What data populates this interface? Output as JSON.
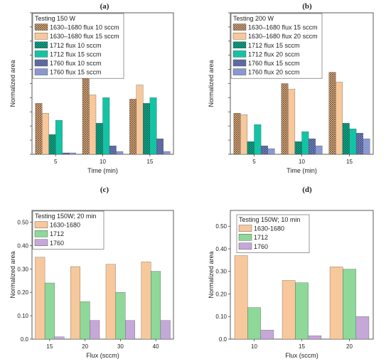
{
  "colors": {
    "c1630": "#f7c89b",
    "c1712": "#12c4a4",
    "c1760": "#8a98d0",
    "g1712": "#8ed89a",
    "g1760": "#c5a8d8",
    "hatch_brown": "#6b4a2e",
    "hatch_teal": "#0c5f4c",
    "hatch_blue": "#38457c"
  },
  "chart_data": [
    {
      "panel": "(a)",
      "type": "bar",
      "legend_title": "Testing 150 W",
      "xlabel": "Time (min)",
      "ylabel": "Normalized area",
      "categories": [
        "5",
        "10",
        "15"
      ],
      "ylim": [
        0,
        1.0
      ],
      "y_ticks_labeled": false,
      "series": [
        {
          "name": "1630–1680 flux 10 sccm",
          "style": "hatch",
          "color": "c1630",
          "values": [
            0.36,
            0.6,
            0.39
          ]
        },
        {
          "name": "1630–1680 flux 15 sccm",
          "style": "solid",
          "color": "c1630",
          "values": [
            0.29,
            0.42,
            0.49
          ]
        },
        {
          "name": "1712 flux 10 sccm",
          "style": "hatch",
          "color": "c1712",
          "values": [
            0.14,
            0.22,
            0.36
          ]
        },
        {
          "name": "1712 flux 15 sccm",
          "style": "solid",
          "color": "c1712",
          "values": [
            0.24,
            0.4,
            0.4
          ]
        },
        {
          "name": "1760 flux 10 sccm",
          "style": "hatch",
          "color": "c1760",
          "values": [
            0.01,
            0.06,
            0.11
          ]
        },
        {
          "name": "1760 flux 15 sccm",
          "style": "solid",
          "color": "c1760",
          "values": [
            0.01,
            0.02,
            0.02
          ]
        }
      ]
    },
    {
      "panel": "(b)",
      "type": "bar",
      "legend_title": "Testing 200 W",
      "xlabel": "Time (min)",
      "ylabel": "Normalized area",
      "categories": [
        "5",
        "10",
        "15"
      ],
      "ylim": [
        0,
        1.0
      ],
      "y_ticks_labeled": false,
      "series": [
        {
          "name": "1630–1680 flux 15 sccm",
          "style": "hatch",
          "color": "c1630",
          "values": [
            0.29,
            0.5,
            0.58
          ]
        },
        {
          "name": "1630–1680 flux 20 sccm",
          "style": "solid",
          "color": "c1630",
          "values": [
            0.28,
            0.46,
            0.51
          ]
        },
        {
          "name": "1712 flux 15 sccm",
          "style": "hatch",
          "color": "c1712",
          "values": [
            0.09,
            0.09,
            0.22
          ]
        },
        {
          "name": "1712 flux 20 sccm",
          "style": "solid",
          "color": "c1712",
          "values": [
            0.21,
            0.16,
            0.18
          ]
        },
        {
          "name": "1760 flux 15 sccm",
          "style": "hatch",
          "color": "c1760",
          "values": [
            0.06,
            0.11,
            0.15
          ]
        },
        {
          "name": "1760 flux 20 sccm",
          "style": "solid",
          "color": "c1760",
          "values": [
            0.04,
            0.06,
            0.11
          ]
        }
      ]
    },
    {
      "panel": "(c)",
      "type": "bar",
      "legend_title": "Testing 150W; 20 min",
      "xlabel": "Flux (sccm)",
      "ylabel": "Normalized area",
      "categories": [
        "15",
        "20",
        "30",
        "40"
      ],
      "ylim": [
        0,
        0.55
      ],
      "y_ticks": [
        "0.0",
        "0.10",
        "0.20",
        "0.30",
        "0.40",
        "0.50"
      ],
      "y_tick_values": [
        0,
        0.1,
        0.2,
        0.3,
        0.4,
        0.5
      ],
      "y_ticks_labeled": true,
      "series": [
        {
          "name": "1630-1680",
          "style": "solid",
          "color": "c1630",
          "values": [
            0.35,
            0.31,
            0.32,
            0.33
          ]
        },
        {
          "name": "1712",
          "style": "solid",
          "color": "g1712",
          "values": [
            0.24,
            0.16,
            0.2,
            0.29
          ]
        },
        {
          "name": "1760",
          "style": "solid",
          "color": "g1760",
          "values": [
            0.01,
            0.08,
            0.08,
            0.08
          ]
        }
      ]
    },
    {
      "panel": "(d)",
      "type": "bar",
      "legend_title": "Testing 150W; 10 min",
      "xlabel": "Flux (sccm)",
      "ylabel": "Normalized area",
      "categories": [
        "10",
        "15",
        "20"
      ],
      "ylim": [
        0,
        0.57
      ],
      "y_ticks": [
        "0.0",
        "0.10",
        "0.20",
        "0.30",
        "0.40",
        "0.50"
      ],
      "y_tick_values": [
        0,
        0.1,
        0.2,
        0.3,
        0.4,
        0.5
      ],
      "y_ticks_labeled": true,
      "series": [
        {
          "name": "1630-1680",
          "style": "solid",
          "color": "c1630",
          "values": [
            0.37,
            0.26,
            0.32
          ]
        },
        {
          "name": "1712",
          "style": "solid",
          "color": "g1712",
          "values": [
            0.14,
            0.25,
            0.31
          ]
        },
        {
          "name": "1760",
          "style": "solid",
          "color": "g1760",
          "values": [
            0.04,
            0.015,
            0.1
          ]
        }
      ]
    }
  ]
}
